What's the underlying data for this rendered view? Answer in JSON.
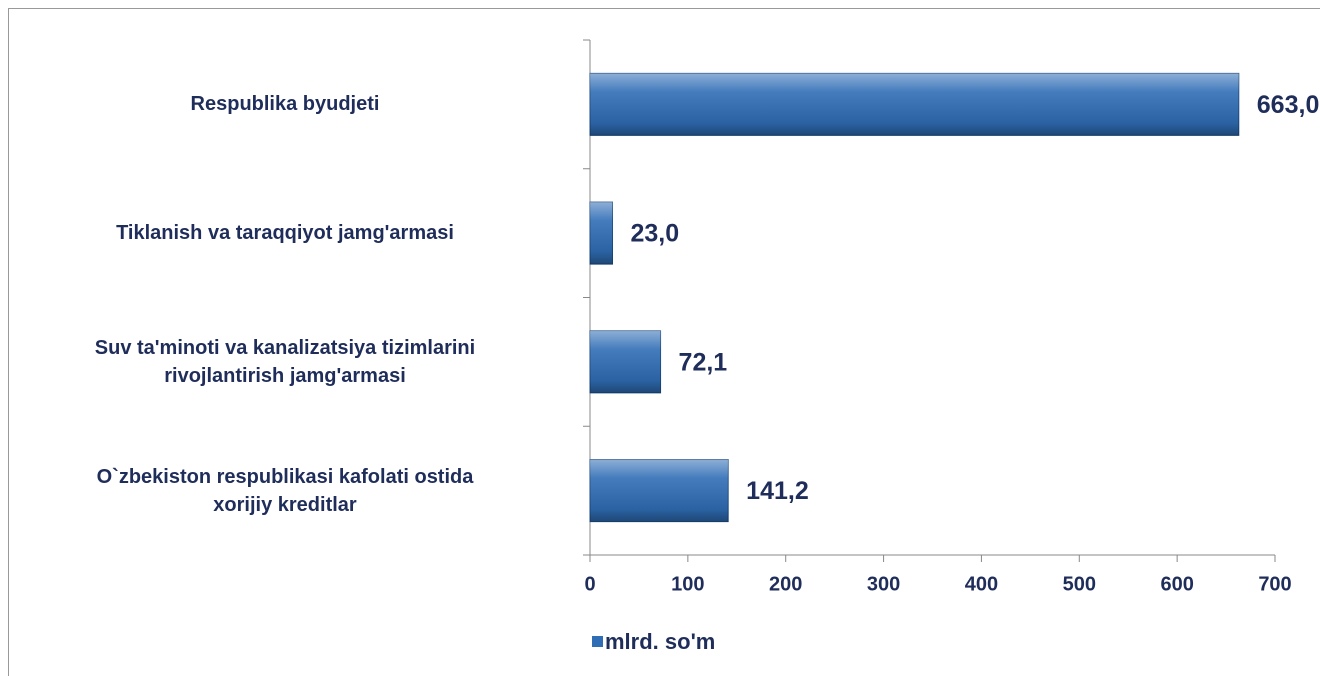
{
  "chart_data": {
    "type": "bar",
    "orientation": "horizontal",
    "categories": [
      "Respublika byudjeti",
      "Tiklanish va taraqqiyot jamg'armasi",
      "Suv ta'minoti va kanalizatsiya tizimlarini\nrivojlantirish jamg'armasi",
      "O`zbekiston respublikasi kafolati ostida\nxorijiy kreditlar"
    ],
    "series": [
      {
        "name": "mlrd. so'm",
        "color": "#2f6db5",
        "values": [
          663.0,
          23.0,
          72.1,
          141.2
        ],
        "value_labels": [
          "663,0",
          "23,0",
          "72,1",
          "141,2"
        ]
      }
    ],
    "xlim": [
      0,
      700
    ],
    "xticks": [
      0,
      100,
      200,
      300,
      400,
      500,
      600,
      700
    ],
    "legend": "bottom"
  }
}
